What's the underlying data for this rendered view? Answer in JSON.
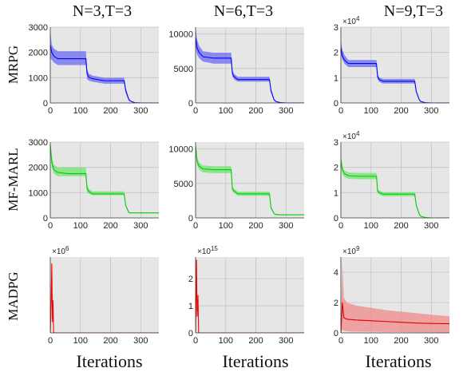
{
  "column_titles": [
    "N=3,T=3",
    "N=6,T=3",
    "N=9,T=3"
  ],
  "row_labels": [
    "MRPG",
    "MF-MARL",
    "MADPG"
  ],
  "xlabels": [
    "Iterations",
    "Iterations",
    "Iterations"
  ],
  "chart_data": [
    {
      "type": "area",
      "row": 0,
      "col": 0,
      "color": "#0000ff",
      "band": "#6b6bf0",
      "xlim": [
        0,
        360
      ],
      "ylim": [
        0,
        3000
      ],
      "xticks": [
        0,
        100,
        200,
        300
      ],
      "yticks": [
        0,
        1000,
        2000,
        3000
      ],
      "ytick_labels": [
        "0",
        "1000",
        "2000",
        "3000"
      ],
      "multiplier": "",
      "x": [
        0,
        5,
        12,
        25,
        60,
        100,
        118,
        122,
        128,
        140,
        180,
        235,
        245,
        250,
        260,
        265,
        280,
        300,
        360
      ],
      "y": [
        2300,
        2000,
        1850,
        1750,
        1750,
        1750,
        1750,
        1150,
        1020,
        960,
        880,
        880,
        880,
        500,
        150,
        80,
        10,
        0,
        0
      ],
      "y_upper": [
        2850,
        2300,
        2150,
        2050,
        2050,
        2050,
        2050,
        1350,
        1160,
        1080,
        1000,
        1000,
        1000,
        600,
        200,
        100,
        15,
        0,
        0
      ],
      "y_lower": [
        1800,
        1700,
        1600,
        1500,
        1500,
        1500,
        1500,
        950,
        880,
        840,
        760,
        760,
        760,
        400,
        100,
        60,
        5,
        0,
        0
      ]
    },
    {
      "type": "area",
      "row": 0,
      "col": 1,
      "color": "#0000ff",
      "band": "#6b6bf0",
      "xlim": [
        0,
        360
      ],
      "ylim": [
        0,
        11000
      ],
      "xticks": [
        0,
        100,
        200,
        300
      ],
      "yticks": [
        0,
        5000,
        10000
      ],
      "ytick_labels": [
        "0",
        "5000",
        "10000"
      ],
      "multiplier": "",
      "x": [
        0,
        5,
        12,
        25,
        60,
        100,
        118,
        122,
        128,
        140,
        180,
        235,
        245,
        250,
        260,
        265,
        280,
        300,
        360
      ],
      "y": [
        9500,
        8000,
        7300,
        6700,
        6500,
        6500,
        6500,
        4300,
        3800,
        3400,
        3400,
        3400,
        3400,
        1800,
        500,
        250,
        50,
        0,
        0
      ],
      "y_upper": [
        11000,
        9200,
        8300,
        7500,
        7300,
        7300,
        7300,
        4800,
        4200,
        3800,
        3800,
        3800,
        3800,
        2100,
        600,
        300,
        60,
        0,
        0
      ],
      "y_lower": [
        8000,
        7000,
        6500,
        6000,
        5700,
        5700,
        5700,
        3800,
        3400,
        3100,
        3100,
        3100,
        3100,
        1500,
        400,
        200,
        40,
        0,
        0
      ]
    },
    {
      "type": "area",
      "row": 0,
      "col": 2,
      "color": "#0000ff",
      "band": "#6b6bf0",
      "xlim": [
        0,
        360
      ],
      "ylim": [
        0,
        30000
      ],
      "xticks": [
        0,
        100,
        200,
        300
      ],
      "yticks": [
        0,
        10000,
        20000,
        30000
      ],
      "ytick_labels": [
        "0",
        "1",
        "2",
        "3"
      ],
      "multiplier": "×10^4",
      "x": [
        0,
        5,
        12,
        25,
        60,
        100,
        118,
        122,
        128,
        140,
        180,
        235,
        245,
        250,
        260,
        265,
        280,
        300,
        360
      ],
      "y": [
        22000,
        18500,
        17000,
        15600,
        15600,
        15600,
        15600,
        10300,
        9200,
        8600,
        8600,
        8600,
        8600,
        4500,
        1300,
        600,
        100,
        0,
        0
      ],
      "y_upper": [
        25000,
        21000,
        19000,
        17000,
        17000,
        17000,
        17000,
        11300,
        10000,
        9500,
        9500,
        9500,
        9500,
        5000,
        1500,
        700,
        120,
        0,
        0
      ],
      "y_lower": [
        19500,
        17000,
        15500,
        14200,
        14200,
        14200,
        14200,
        9300,
        8300,
        7700,
        7700,
        7700,
        7700,
        4000,
        1100,
        500,
        80,
        0,
        0
      ]
    },
    {
      "type": "area",
      "row": 1,
      "col": 0,
      "color": "#00cc00",
      "band": "#6ee36e",
      "xlim": [
        0,
        360
      ],
      "ylim": [
        0,
        3000
      ],
      "xticks": [
        0,
        100,
        200,
        300
      ],
      "yticks": [
        0,
        1000,
        2000,
        3000
      ],
      "ytick_labels": [
        "0",
        "1000",
        "2000",
        "3000"
      ],
      "multiplier": "",
      "x": [
        0,
        5,
        12,
        25,
        60,
        100,
        118,
        122,
        128,
        140,
        180,
        235,
        245,
        250,
        260,
        265,
        280,
        360
      ],
      "y": [
        2900,
        2200,
        1900,
        1800,
        1750,
        1750,
        1750,
        1150,
        1050,
        950,
        950,
        950,
        950,
        500,
        220,
        200,
        200,
        200
      ],
      "y_upper": [
        3000,
        2400,
        2100,
        2000,
        2000,
        2000,
        2000,
        1300,
        1150,
        1050,
        1050,
        1050,
        1050,
        550,
        240,
        210,
        210,
        210
      ],
      "y_lower": [
        2600,
        2000,
        1750,
        1650,
        1650,
        1650,
        1650,
        1000,
        950,
        900,
        900,
        900,
        900,
        450,
        200,
        190,
        190,
        190
      ]
    },
    {
      "type": "area",
      "row": 1,
      "col": 1,
      "color": "#00cc00",
      "band": "#6ee36e",
      "xlim": [
        0,
        360
      ],
      "ylim": [
        0,
        11000
      ],
      "xticks": [
        0,
        100,
        200,
        300
      ],
      "yticks": [
        0,
        5000,
        10000
      ],
      "ytick_labels": [
        "0",
        "5000",
        "10000"
      ],
      "multiplier": "",
      "x": [
        0,
        5,
        12,
        25,
        60,
        100,
        118,
        122,
        128,
        140,
        180,
        235,
        245,
        250,
        260,
        265,
        280,
        360
      ],
      "y": [
        10500,
        8200,
        7500,
        7100,
        7000,
        7000,
        7000,
        4200,
        3900,
        3500,
        3500,
        3500,
        3500,
        1500,
        650,
        500,
        450,
        450
      ],
      "y_upper": [
        11200,
        8800,
        8000,
        7600,
        7500,
        7500,
        7500,
        4600,
        4200,
        3800,
        3800,
        3800,
        3800,
        1700,
        700,
        550,
        500,
        500
      ],
      "y_lower": [
        9800,
        7600,
        7000,
        6600,
        6500,
        6500,
        6500,
        3800,
        3600,
        3200,
        3200,
        3200,
        3200,
        1300,
        600,
        450,
        400,
        400
      ]
    },
    {
      "type": "area",
      "row": 1,
      "col": 2,
      "color": "#00cc00",
      "band": "#6ee36e",
      "xlim": [
        0,
        360
      ],
      "ylim": [
        0,
        30000
      ],
      "xticks": [
        0,
        100,
        200,
        300
      ],
      "yticks": [
        0,
        10000,
        20000,
        30000
      ],
      "ytick_labels": [
        "0",
        "1",
        "2",
        "3"
      ],
      "multiplier": "×10^4",
      "x": [
        0,
        5,
        12,
        25,
        60,
        100,
        118,
        122,
        128,
        140,
        180,
        235,
        245,
        250,
        260,
        265,
        280,
        300,
        360
      ],
      "y": [
        23000,
        19000,
        17500,
        16700,
        16500,
        16500,
        16500,
        10500,
        10000,
        9400,
        9400,
        9400,
        9400,
        5000,
        1500,
        700,
        150,
        0,
        0
      ],
      "y_upper": [
        25000,
        20500,
        18800,
        18000,
        17800,
        17800,
        17800,
        11300,
        10800,
        10200,
        10200,
        10200,
        10200,
        5500,
        1700,
        800,
        180,
        0,
        0
      ],
      "y_lower": [
        21000,
        17500,
        16200,
        15500,
        15300,
        15300,
        15300,
        9700,
        9200,
        8600,
        8600,
        8600,
        8600,
        4500,
        1300,
        600,
        120,
        0,
        0
      ]
    },
    {
      "type": "area",
      "row": 2,
      "col": 0,
      "color": "#ff0000",
      "band": "#f08a8a",
      "xlim": [
        0,
        360
      ],
      "ylim": [
        0,
        3500000
      ],
      "xticks": [
        0,
        100,
        200,
        300
      ],
      "yticks": [],
      "ytick_labels": [],
      "multiplier": "×10^6",
      "x": [
        0,
        3,
        5,
        7,
        9,
        11,
        14,
        20,
        360
      ],
      "y": [
        0,
        1500000,
        3200000,
        500000,
        1500000,
        0,
        0,
        0,
        0
      ],
      "y_upper": [
        0,
        1600000,
        3400000,
        600000,
        1600000,
        0,
        0,
        0,
        0
      ],
      "y_lower": [
        0,
        1400000,
        3000000,
        400000,
        1400000,
        0,
        0,
        0,
        0
      ]
    },
    {
      "type": "area",
      "row": 2,
      "col": 1,
      "color": "#ff0000",
      "band": "#f08a8a",
      "xlim": [
        0,
        360
      ],
      "ylim": [
        0,
        2800000000000000.0
      ],
      "xticks": [
        0,
        100,
        200,
        300
      ],
      "yticks": [
        0,
        1000000000000000.0,
        2000000000000000.0
      ],
      "ytick_labels": [
        "0",
        "1",
        "2"
      ],
      "multiplier": "×10^15",
      "x": [
        0,
        3,
        5,
        8,
        10,
        12,
        15,
        360
      ],
      "y": [
        0,
        2700000000000000.0,
        600000000000000,
        1400000000000000.0,
        0,
        0,
        0,
        0
      ],
      "y_upper": [
        0,
        2750000000000000.0,
        700000000000000,
        1500000000000000.0,
        0,
        0,
        0,
        0
      ],
      "y_lower": [
        0,
        2600000000000000.0,
        500000000000000,
        1300000000000000.0,
        0,
        0,
        0,
        0
      ]
    },
    {
      "type": "area",
      "row": 2,
      "col": 2,
      "color": "#dd0000",
      "band": "#f08a8a",
      "xlim": [
        0,
        360
      ],
      "ylim": [
        0,
        5000000000
      ],
      "xticks": [
        0,
        100,
        200,
        300
      ],
      "yticks": [
        0,
        2000000000,
        4000000000
      ],
      "ytick_labels": [
        "0",
        "2",
        "4"
      ],
      "multiplier": "×10^9",
      "x": [
        0,
        5,
        10,
        20,
        50,
        100,
        150,
        200,
        250,
        300,
        360
      ],
      "y": [
        0,
        2000000000,
        1000000000,
        900000000,
        850000000,
        800000000,
        750000000,
        700000000,
        650000000,
        620000000,
        600000000
      ],
      "y_upper": [
        0,
        4700000000,
        2300000000,
        2000000000,
        1800000000,
        1650000000,
        1500000000,
        1400000000,
        1300000000,
        1200000000,
        1100000000
      ],
      "y_lower": [
        0,
        200000000,
        150000000,
        100000000,
        80000000,
        70000000,
        60000000,
        50000000,
        40000000,
        30000000,
        20000000
      ]
    }
  ]
}
